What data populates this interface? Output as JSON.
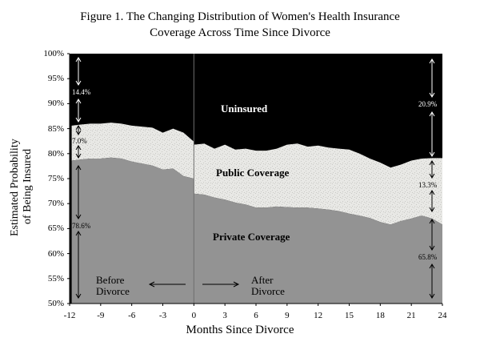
{
  "chart_data": {
    "type": "area",
    "title": "Figure 1. The Changing Distribution of Women's Health Insurance",
    "title_line2": "Coverage Across Time Since Divorce",
    "xlabel": "Months Since Divorce",
    "ylabel_line1": "Estimated Probability",
    "ylabel_line2": "of Being Insured",
    "xlim": [
      -12,
      24
    ],
    "ylim": [
      50,
      100
    ],
    "x_ticks": [
      "-12",
      "-9",
      "-6",
      "-3",
      "0",
      "3",
      "6",
      "9",
      "12",
      "15",
      "18",
      "21",
      "24"
    ],
    "y_ticks": [
      "100%",
      "95%",
      "90%",
      "85%",
      "80%",
      "75%",
      "70%",
      "65%",
      "60%",
      "55%",
      "50%"
    ],
    "x": [
      -11.8,
      -11,
      -10,
      -9,
      -8,
      -7,
      -6,
      -5,
      -4,
      -3,
      -2,
      -1,
      -0.01,
      0,
      1,
      2,
      3,
      4,
      5,
      6,
      7,
      8,
      9,
      10,
      11,
      12,
      13,
      14,
      15,
      16,
      17,
      18,
      19,
      20,
      21,
      22,
      23,
      24
    ],
    "series": [
      {
        "name": "Private Coverage",
        "color": "#939393",
        "values": [
          78.6,
          78.8,
          79.0,
          79.0,
          79.2,
          79.0,
          78.4,
          78.0,
          77.6,
          76.8,
          77.0,
          75.5,
          75.0,
          72.0,
          71.8,
          71.2,
          70.8,
          70.2,
          69.8,
          69.2,
          69.2,
          69.4,
          69.3,
          69.2,
          69.2,
          69.0,
          68.8,
          68.5,
          68.0,
          67.6,
          67.1,
          66.3,
          65.8,
          66.5,
          67.0,
          67.6,
          67.0,
          65.8
        ]
      },
      {
        "name": "Public Coverage",
        "color": "#e8e8e5",
        "values": [
          85.6,
          85.8,
          86.0,
          86.0,
          86.2,
          86.0,
          85.6,
          85.4,
          85.2,
          84.2,
          85.0,
          84.2,
          82.4,
          81.8,
          82.0,
          81.0,
          81.8,
          80.8,
          81.0,
          80.6,
          80.6,
          81.0,
          81.8,
          82.0,
          81.4,
          81.6,
          81.2,
          81.0,
          80.8,
          80.0,
          79.0,
          78.2,
          77.2,
          77.8,
          78.6,
          79.0,
          79.1,
          79.1
        ]
      }
    ],
    "top_color": "#000000",
    "region_labels": {
      "uninsured": "Uninsured",
      "public": "Public Coverage",
      "private": "Private Coverage"
    },
    "annotations": {
      "start_uninsured": "14.4%",
      "start_public": "7.0%",
      "start_private": "78.6%",
      "end_uninsured": "20.9%",
      "end_public": "13.3%",
      "end_private": "65.8%",
      "before": [
        "Before",
        "Divorce"
      ],
      "after": [
        "After",
        "Divorce"
      ]
    }
  }
}
